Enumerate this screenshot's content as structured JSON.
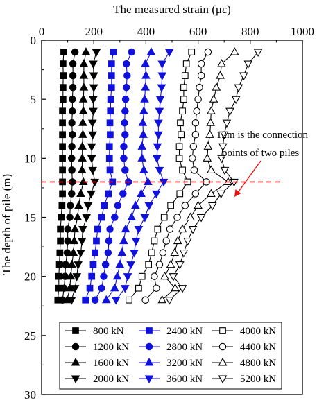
{
  "chart_data": {
    "type": "line",
    "xlabel": "The measured strain (με)",
    "ylabel": "The depth of pile (m)",
    "xlim": [
      0,
      1000
    ],
    "ylim": [
      30,
      0
    ],
    "x_axis_position": "top",
    "y_inverted": true,
    "xticks": [
      "0",
      "200",
      "400",
      "600",
      "800",
      "1000"
    ],
    "yticks": [
      "0",
      "5",
      "10",
      "15",
      "20",
      "25",
      "30"
    ],
    "grid": false,
    "legend_position": "bottom",
    "depths": [
      1,
      2,
      3,
      4,
      5,
      6,
      7,
      8,
      9,
      10,
      11,
      12,
      13,
      14,
      15,
      16,
      17,
      18,
      19,
      20,
      21,
      22
    ],
    "series": [
      {
        "name": "800 kN",
        "color": "#000000",
        "marker": "square",
        "filled": true,
        "values": [
          85,
          82,
          83,
          82,
          82,
          80,
          80,
          80,
          80,
          80,
          80,
          80,
          80,
          78,
          75,
          72,
          72,
          70,
          68,
          66,
          66,
          62
        ]
      },
      {
        "name": "1200 kN",
        "color": "#000000",
        "marker": "circle",
        "filled": true,
        "values": [
          128,
          120,
          120,
          120,
          118,
          118,
          116,
          118,
          116,
          115,
          116,
          118,
          115,
          110,
          108,
          100,
          100,
          98,
          92,
          90,
          86,
          80
        ]
      },
      {
        "name": "1600 kN",
        "color": "#000000",
        "marker": "triangle-up",
        "filled": true,
        "values": [
          170,
          162,
          162,
          162,
          160,
          160,
          158,
          158,
          156,
          156,
          155,
          160,
          150,
          142,
          138,
          128,
          125,
          122,
          116,
          112,
          108,
          98
        ]
      },
      {
        "name": "2000 kN",
        "color": "#000000",
        "marker": "triangle-down",
        "filled": true,
        "values": [
          210,
          198,
          200,
          200,
          198,
          198,
          195,
          196,
          192,
          192,
          196,
          204,
          190,
          178,
          172,
          158,
          155,
          150,
          140,
          135,
          128,
          115
        ]
      },
      {
        "name": "2400 kN",
        "color": "#1111dd",
        "marker": "square",
        "filled": true,
        "values": [
          275,
          268,
          268,
          268,
          265,
          264,
          262,
          263,
          260,
          260,
          262,
          272,
          256,
          240,
          230,
          215,
          210,
          205,
          198,
          192,
          185,
          168
        ]
      },
      {
        "name": "2800 kN",
        "color": "#1111dd",
        "marker": "circle",
        "filled": true,
        "values": [
          345,
          325,
          328,
          325,
          322,
          320,
          318,
          320,
          315,
          315,
          320,
          333,
          312,
          292,
          280,
          262,
          258,
          255,
          245,
          238,
          230,
          205
        ]
      },
      {
        "name": "3200 kN",
        "color": "#1111dd",
        "marker": "triangle-up",
        "filled": true,
        "values": [
          420,
          398,
          400,
          398,
          395,
          392,
          388,
          390,
          385,
          385,
          392,
          408,
          382,
          360,
          345,
          322,
          315,
          308,
          300,
          290,
          280,
          248
        ]
      },
      {
        "name": "3600 kN",
        "color": "#1111dd",
        "marker": "triangle-down",
        "filled": true,
        "values": [
          490,
          462,
          462,
          460,
          455,
          452,
          448,
          448,
          444,
          442,
          452,
          468,
          440,
          412,
          396,
          372,
          362,
          355,
          342,
          330,
          320,
          285
        ]
      },
      {
        "name": "4000 kN",
        "color": "#000000",
        "marker": "square",
        "filled": false,
        "values": [
          575,
          555,
          550,
          545,
          545,
          540,
          532,
          535,
          528,
          528,
          540,
          560,
          530,
          495,
          470,
          445,
          432,
          422,
          410,
          385,
          372,
          335
        ]
      },
      {
        "name": "4400 kN",
        "color": "#000000",
        "marker": "circle",
        "filled": false,
        "values": [
          638,
          612,
          612,
          605,
          600,
          595,
          590,
          590,
          582,
          578,
          585,
          632,
          590,
          550,
          520,
          492,
          478,
          465,
          452,
          432,
          440,
          398
        ]
      },
      {
        "name": "4800 kN",
        "color": "#000000",
        "marker": "triangle-up",
        "filled": false,
        "values": [
          740,
          690,
          685,
          670,
          660,
          650,
          648,
          645,
          638,
          635,
          650,
          715,
          650,
          600,
          570,
          540,
          522,
          510,
          495,
          472,
          512,
          462
        ]
      },
      {
        "name": "5200 kN",
        "color": "#000000",
        "marker": "triangle-down",
        "filled": false,
        "values": [
          830,
          792,
          775,
          755,
          745,
          722,
          710,
          700,
          695,
          690,
          702,
          738,
          688,
          655,
          612,
          580,
          560,
          545,
          530,
          505,
          540,
          490
        ]
      }
    ],
    "annotation": {
      "text_line1": "12m is the  connection",
      "text_line2": "points of two piles",
      "depth": 12,
      "line_color": "#ee1111",
      "arrow_color": "#ee1111"
    }
  }
}
